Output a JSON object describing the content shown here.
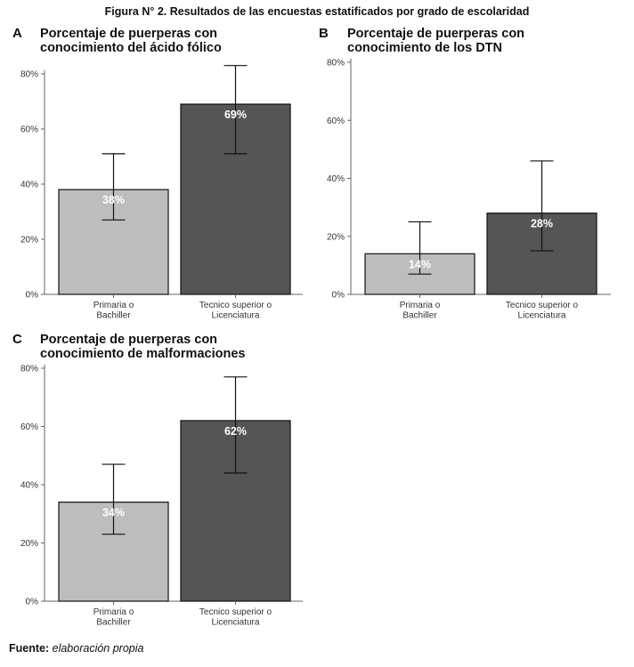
{
  "figure_title": "Figura N° 2. Resultados de las encuestas estatificados por grado de escolaridad",
  "footer": {
    "label": "Fuente:",
    "text": "elaboración propia"
  },
  "colors": {
    "bar_light": "#bdbdbd",
    "bar_dark": "#555555",
    "axis": "#666666",
    "error_bar": "#111111"
  },
  "chart_data": [
    {
      "type": "bar",
      "panel": "A",
      "title_lines": [
        "Porcentaje de puerperas con",
        "conocimiento del ácido fólico"
      ],
      "categories": [
        [
          "Primaria o",
          "Bachiller"
        ],
        [
          "Tecnico superior o",
          "Licenciatura"
        ]
      ],
      "values": [
        38,
        69
      ],
      "error_low": [
        27,
        51
      ],
      "error_high": [
        51,
        83
      ],
      "data_labels": [
        "38%",
        "69%"
      ],
      "yticks": [
        "0%",
        "20%",
        "40%",
        "60%",
        "80%"
      ],
      "ylim": [
        0,
        80
      ],
      "xlabel": "",
      "ylabel": "",
      "grid": false,
      "legend": "none"
    },
    {
      "type": "bar",
      "panel": "B",
      "title_lines": [
        "Porcentaje de puerperas con",
        "conocimiento de los DTN"
      ],
      "categories": [
        [
          "Primaria o",
          "Bachiller"
        ],
        [
          "Tecnico superior o",
          "Licenciatura"
        ]
      ],
      "values": [
        14,
        28
      ],
      "error_low": [
        7,
        15
      ],
      "error_high": [
        25,
        46
      ],
      "data_labels": [
        "14%",
        "28%"
      ],
      "yticks": [
        "0%",
        "20%",
        "40%",
        "60%",
        "80%"
      ],
      "ylim": [
        0,
        80
      ],
      "xlabel": "",
      "ylabel": "",
      "grid": false,
      "legend": "none"
    },
    {
      "type": "bar",
      "panel": "C",
      "title_lines": [
        "Porcentaje de puerperas con",
        "conocimiento de malformaciones"
      ],
      "categories": [
        [
          "Primaria o",
          "Bachiller"
        ],
        [
          "Tecnico superior o",
          "Licenciatura"
        ]
      ],
      "values": [
        34,
        62
      ],
      "error_low": [
        23,
        44
      ],
      "error_high": [
        47,
        77
      ],
      "data_labels": [
        "34%",
        "62%"
      ],
      "yticks": [
        "0%",
        "20%",
        "40%",
        "60%",
        "80%"
      ],
      "ylim": [
        0,
        80
      ],
      "xlabel": "",
      "ylabel": "",
      "grid": false,
      "legend": "none"
    }
  ]
}
